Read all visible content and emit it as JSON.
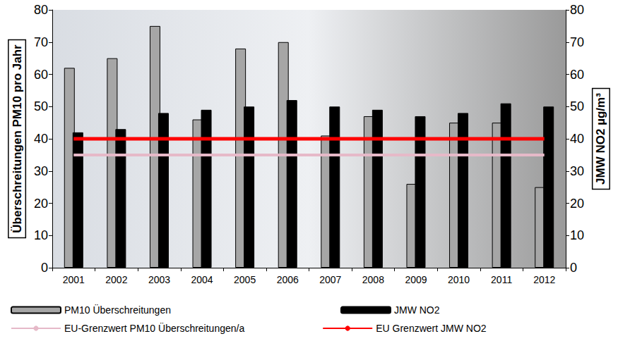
{
  "chart_data": {
    "type": "bar",
    "y_label": "Überschreitungen PM10 pro Jahr",
    "y2_label": "JMW NO2 µg/m³",
    "categories": [
      "2001",
      "2002",
      "2003",
      "2004",
      "2005",
      "2006",
      "2007",
      "2008",
      "2009",
      "2010",
      "2011",
      "2012"
    ],
    "series": [
      {
        "name": "PM10 Überschreitungen",
        "type": "bar",
        "color": "#a6a6a6",
        "axis": "y",
        "values": [
          62,
          65,
          75,
          46,
          68,
          70,
          41,
          47,
          26,
          45,
          45,
          25
        ]
      },
      {
        "name": "JMW NO2",
        "type": "bar",
        "color": "#000000",
        "axis": "y2",
        "values": [
          42,
          43,
          48,
          49,
          50,
          52,
          50,
          49,
          47,
          48,
          51,
          50
        ]
      },
      {
        "name": "EU-Grenzwert PM10 Überschreitungen/a",
        "type": "line",
        "color": "#e6b9c8",
        "axis": "y",
        "line_style": "solid",
        "values": [
          35,
          35,
          35,
          35,
          35,
          35,
          35,
          35,
          35,
          35,
          35,
          35
        ]
      },
      {
        "name": "EU Grenzwert JMW NO2",
        "type": "line",
        "color": "#ff0000",
        "axis": "y2",
        "line_style": "solid",
        "values": [
          40,
          40,
          40,
          40,
          40,
          40,
          40,
          40,
          40,
          40,
          40,
          40
        ]
      }
    ],
    "ylim": [
      0,
      80
    ],
    "yticks": [
      0,
      10,
      20,
      30,
      40,
      50,
      60,
      70,
      80
    ],
    "y2lim": [
      0,
      80
    ],
    "y2ticks": [
      0,
      10,
      20,
      30,
      40,
      50,
      60,
      70,
      80
    ],
    "grid": false,
    "legend": "bottom"
  }
}
